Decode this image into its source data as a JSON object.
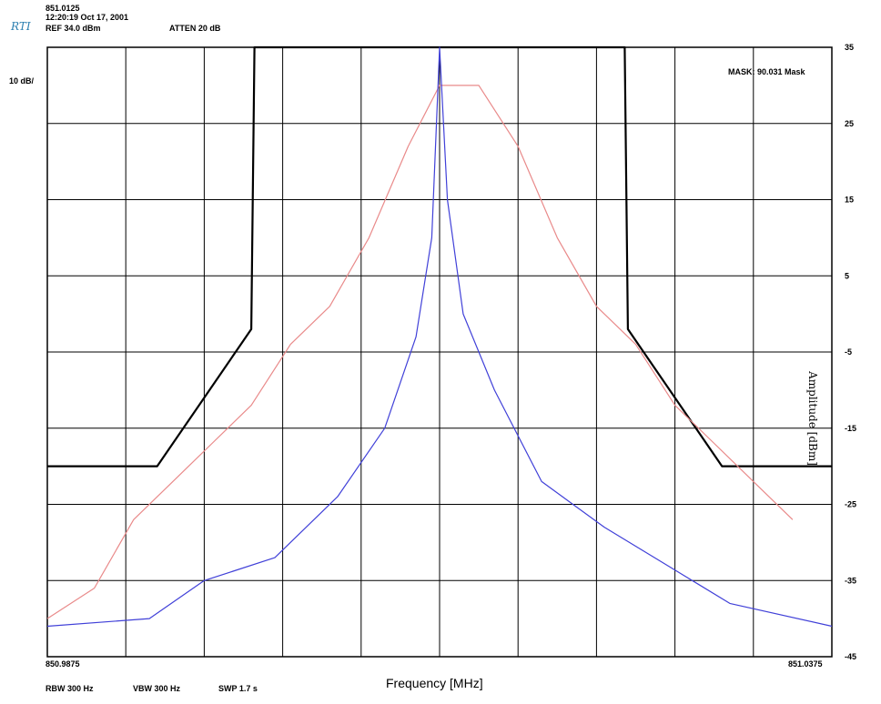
{
  "header": {
    "logo": "RTI",
    "line1": "851.0125",
    "line2": "12:20:19 Oct 17, 2001",
    "ref": "REF 34.0 dBm",
    "atten": "ATTEN 20 dB",
    "scale": "10 dB/",
    "mask": "MASK: 90.031 Mask"
  },
  "footer": {
    "rbw": "RBW 300 Hz",
    "vbw": "VBW 300 Hz",
    "swp": "SWP 1.7 s"
  },
  "colors": {
    "mask": "#000000",
    "red": "#e98a8a",
    "blue": "#4040d8",
    "grid": "#000000"
  },
  "chart_data": {
    "type": "line",
    "title": "",
    "xlabel": "Frequency [MHz]",
    "ylabel": "Amplitude [dBm]",
    "xlim": [
      850.9875,
      851.0375
    ],
    "ylim": [
      -45,
      35
    ],
    "x_tick_labels": [
      "850.9875",
      "851.0375"
    ],
    "y_ticks": [
      35,
      25,
      15,
      5,
      -5,
      -15,
      -25,
      -35,
      -45
    ],
    "grid": true,
    "series": [
      {
        "color": "#000000",
        "x": [
          850.9875,
          850.9945,
          851.0005,
          851.0007,
          851.0243,
          851.0245,
          851.0305,
          851.0375
        ],
        "y": [
          -20,
          -20,
          -2,
          35,
          35,
          -2,
          -20,
          -20
        ]
      },
      {
        "color": "#e98a8a",
        "x": [
          850.9875,
          850.9905,
          850.993,
          850.9955,
          850.998,
          851.0005,
          851.003,
          851.0055,
          851.008,
          851.0105,
          851.0125,
          851.015,
          851.0175,
          851.02,
          851.0225,
          851.025,
          851.0275,
          851.03,
          851.0325,
          851.035
        ],
        "y": [
          -40,
          -36,
          -27,
          -22,
          -17,
          -12,
          -4,
          1,
          10,
          22,
          30,
          30,
          22,
          10,
          1,
          -4,
          -12,
          -17,
          -22,
          -27
        ]
      },
      {
        "color": "#4040d8",
        "x": [
          850.9875,
          850.994,
          850.9975,
          851.002,
          851.006,
          851.009,
          851.011,
          851.012,
          851.0125,
          851.013,
          851.014,
          851.016,
          851.019,
          851.023,
          851.027,
          851.031,
          851.0375
        ],
        "y": [
          -41,
          -40,
          -35,
          -32,
          -24,
          -15,
          -3,
          10,
          35,
          15,
          0,
          -10,
          -22,
          -28,
          -33,
          -38,
          -41
        ]
      }
    ]
  }
}
